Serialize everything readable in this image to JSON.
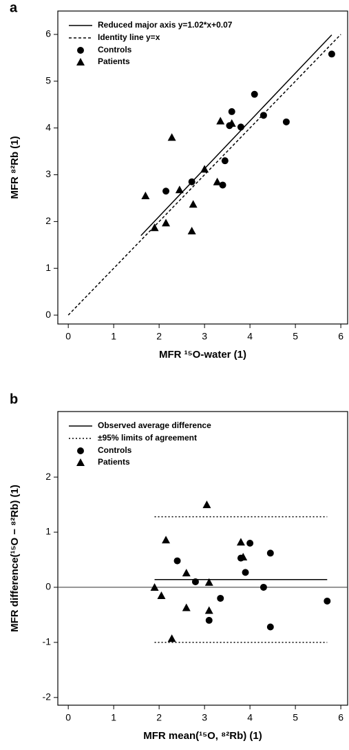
{
  "chart_data": [
    {
      "type": "scatter",
      "panel_label": "a",
      "x_label": "MFR ¹⁵O-water (1)",
      "y_label": "MFR ⁸²Rb (1)",
      "xlim": [
        -0.23,
        6.15
      ],
      "ylim": [
        -0.19,
        6.5
      ],
      "xticks": [
        0,
        1,
        2,
        3,
        4,
        5,
        6
      ],
      "yticks": [
        0,
        1,
        2,
        3,
        4,
        5,
        6
      ],
      "lines": [
        {
          "name": "Reduced major axis y=1.02*x+0.07",
          "style": "solid",
          "x": [
            1.6,
            5.8
          ],
          "y": [
            1.7,
            5.99
          ]
        },
        {
          "name": "Identity line y=x",
          "style": "dashed",
          "x": [
            0,
            6
          ],
          "y": [
            0,
            6
          ]
        }
      ],
      "series": [
        {
          "name": "Controls",
          "marker": "circle",
          "color": "#000000",
          "x": [
            2.15,
            2.72,
            3.4,
            3.45,
            3.55,
            3.6,
            3.8,
            4.1,
            4.3,
            4.8,
            5.8
          ],
          "values": [
            2.65,
            2.85,
            2.78,
            3.3,
            4.05,
            4.35,
            4.02,
            4.72,
            4.27,
            4.13,
            5.58
          ]
        },
        {
          "name": "Patients",
          "marker": "triangle",
          "color": "#000000",
          "x": [
            1.7,
            1.9,
            2.15,
            2.28,
            2.45,
            2.72,
            2.75,
            3.0,
            3.28,
            3.35,
            3.6
          ],
          "values": [
            2.55,
            1.87,
            1.97,
            3.8,
            2.68,
            1.8,
            2.37,
            3.12,
            2.85,
            4.15,
            4.1
          ]
        }
      ]
    },
    {
      "type": "scatter",
      "panel_label": "b",
      "x_label": "MFR mean(¹⁵O, ⁸²Rb) (1)",
      "y_label": "MFR difference(¹⁵O − ⁸²Rb) (1)",
      "xlim": [
        -0.23,
        6.15
      ],
      "ylim": [
        -2.14,
        3.19
      ],
      "xticks": [
        0,
        1,
        2,
        3,
        4,
        5,
        6
      ],
      "yticks": [
        -2,
        -1,
        0,
        1,
        2
      ],
      "reference_line": 0,
      "lines": [
        {
          "name": "Observed average difference",
          "style": "solid",
          "x": [
            1.9,
            5.7
          ],
          "y": [
            0.14,
            0.14
          ]
        },
        {
          "name": "±95% limits of agreement",
          "style": "dotted",
          "x": [
            1.9,
            5.7
          ],
          "y": [
            1.28,
            1.28
          ],
          "y_lower": [
            -1.0,
            -1.0
          ]
        }
      ],
      "series": [
        {
          "name": "Controls",
          "marker": "circle",
          "color": "#000000",
          "x": [
            2.4,
            2.8,
            3.1,
            3.35,
            3.8,
            3.9,
            4.0,
            4.3,
            4.45,
            4.45,
            5.7
          ],
          "values": [
            0.48,
            0.1,
            -0.6,
            -0.2,
            0.53,
            0.27,
            0.8,
            0.0,
            0.62,
            -0.72,
            -0.25
          ]
        },
        {
          "name": "Patients",
          "marker": "triangle",
          "color": "#000000",
          "x": [
            1.9,
            2.05,
            2.15,
            2.28,
            2.6,
            2.6,
            3.05,
            3.1,
            3.1,
            3.8,
            3.85
          ],
          "values": [
            0.0,
            -0.15,
            0.86,
            -0.93,
            0.26,
            -0.37,
            1.5,
            0.09,
            -0.42,
            0.82,
            0.55
          ]
        }
      ]
    }
  ]
}
